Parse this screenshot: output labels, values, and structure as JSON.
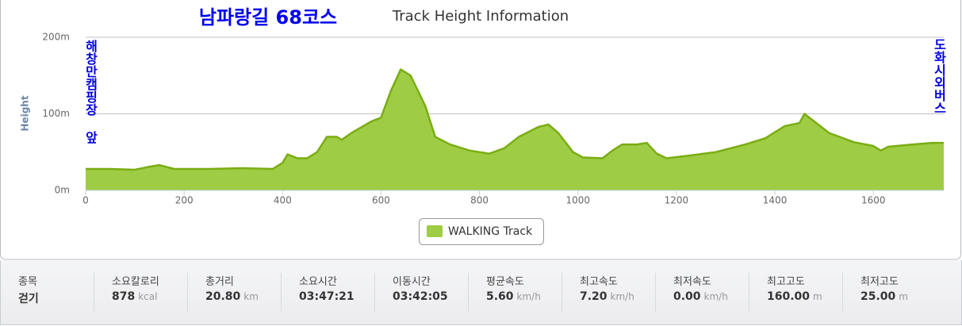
{
  "chart_data": {
    "type": "area",
    "title": "남파랑길 68코스",
    "subtitle": "Track Height Information",
    "y_label": "Height",
    "start_label": "해창만캠핑장 앞",
    "end_label": "도화시외버스",
    "x": [
      0,
      50,
      100,
      130,
      150,
      180,
      250,
      320,
      380,
      400,
      410,
      430,
      450,
      470,
      490,
      510,
      520,
      540,
      580,
      600,
      620,
      640,
      660,
      690,
      710,
      740,
      780,
      820,
      850,
      880,
      920,
      940,
      960,
      990,
      1010,
      1050,
      1070,
      1090,
      1120,
      1140,
      1160,
      1180,
      1220,
      1280,
      1340,
      1380,
      1420,
      1450,
      1460,
      1480,
      1510,
      1560,
      1600,
      1615,
      1630,
      1680,
      1720,
      1743
    ],
    "series": [
      {
        "name": "WALKING Track",
        "color": "#9fcc45",
        "line_color": "#79ad12",
        "values": [
          28,
          28,
          27,
          31,
          33,
          28,
          28,
          29,
          28,
          36,
          47,
          42,
          42,
          50,
          70,
          70,
          66,
          75,
          90,
          95,
          130,
          158,
          150,
          110,
          70,
          60,
          52,
          48,
          55,
          70,
          83,
          86,
          75,
          50,
          43,
          42,
          52,
          60,
          60,
          62,
          48,
          42,
          45,
          50,
          60,
          68,
          84,
          88,
          100,
          90,
          75,
          63,
          58,
          52,
          57,
          60,
          62,
          62
        ]
      }
    ],
    "xlim": [
      0,
      1743
    ],
    "xticks": [
      0,
      200,
      400,
      600,
      800,
      1000,
      1200,
      1400,
      1600
    ],
    "ylim": [
      0,
      200
    ],
    "yticks": [
      {
        "value": 0,
        "label": "0m"
      },
      {
        "value": 100,
        "label": "100m"
      },
      {
        "value": 200,
        "label": "200m"
      }
    ],
    "grid": true
  },
  "stats": [
    {
      "label": "종목",
      "value": "걷기",
      "unit": null
    },
    {
      "label": "소요칼로리",
      "value": "878",
      "unit": "kcal"
    },
    {
      "label": "총거리",
      "value": "20.80",
      "unit": "km"
    },
    {
      "label": "소요시간",
      "value": "03:47:21",
      "unit": null
    },
    {
      "label": "이동시간",
      "value": "03:42:05",
      "unit": null
    },
    {
      "label": "평균속도",
      "value": "5.60",
      "unit": "km/h"
    },
    {
      "label": "최고속도",
      "value": "7.20",
      "unit": "km/h"
    },
    {
      "label": "최저속도",
      "value": "0.00",
      "unit": "km/h"
    },
    {
      "label": "최고고도",
      "value": "160.00",
      "unit": "m"
    },
    {
      "label": "최저고도",
      "value": "25.00",
      "unit": "m"
    }
  ]
}
